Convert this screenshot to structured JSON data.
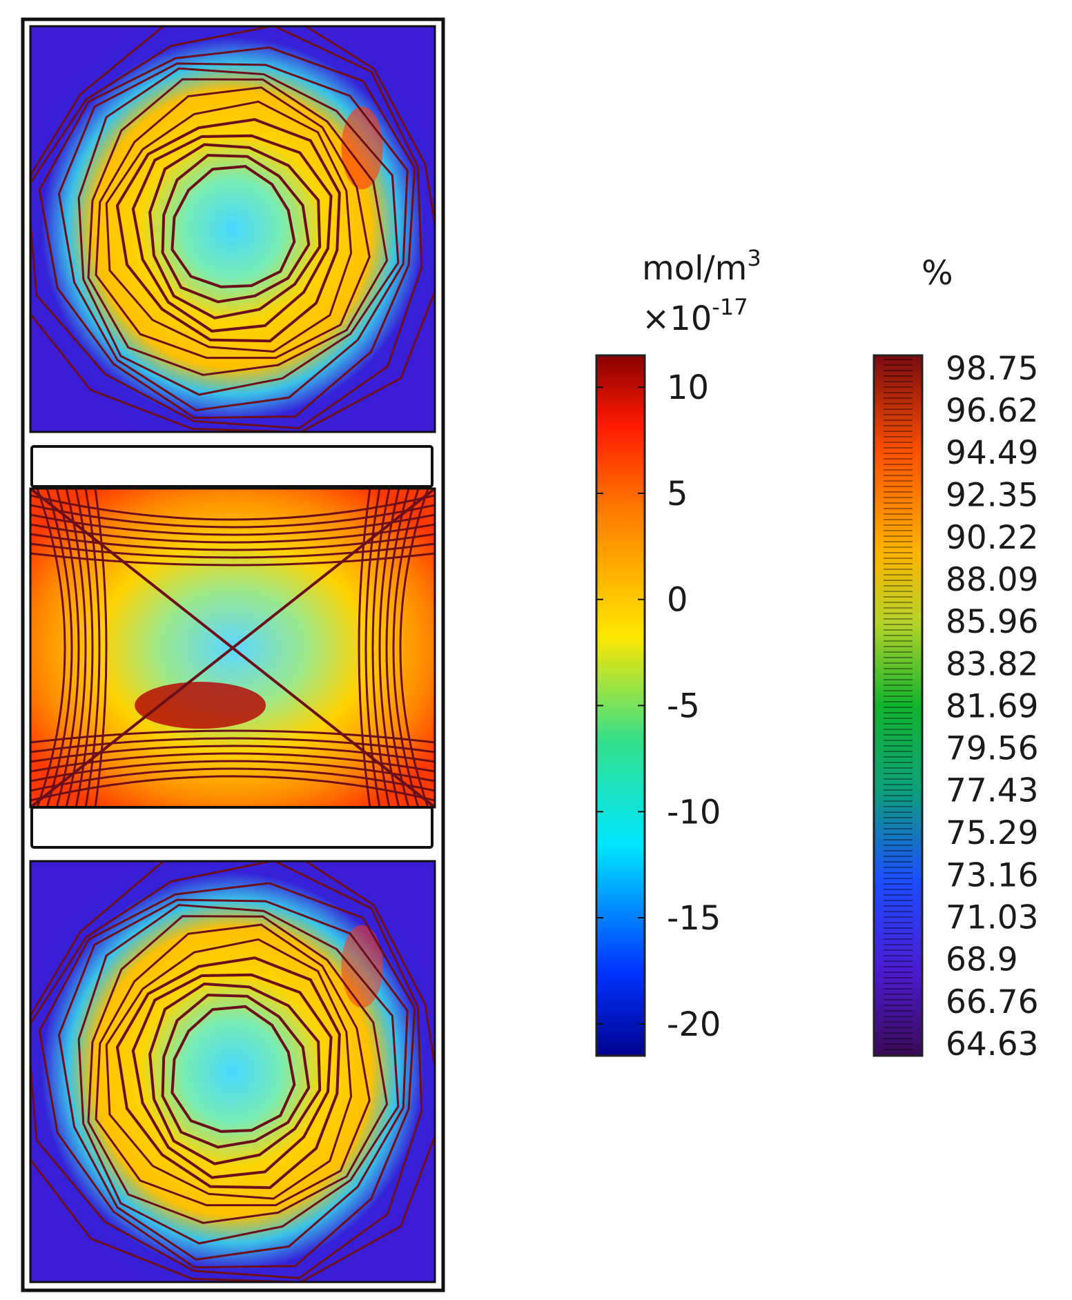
{
  "chart_data": {
    "type": "heatmap",
    "title": "",
    "panels": [
      {
        "name": "",
        "pattern": "rings",
        "hot_ring_intensity": 0.62
      },
      {
        "name": "",
        "pattern": "cross",
        "hot_ring_intensity": 0.8
      },
      {
        "name": "",
        "pattern": "rings",
        "hot_ring_intensity": 0.55
      }
    ],
    "colorbars": [
      {
        "name": "concentration",
        "unit_line1": "mol/m",
        "unit_sup": "3",
        "unit_line2": "×10",
        "unit_line2_sup": "-17",
        "ticks": [
          "10",
          "5",
          "0",
          "-5",
          "-10",
          "-15",
          "-20"
        ],
        "tick_values": [
          10,
          5,
          0,
          -5,
          -10,
          -15,
          -20
        ],
        "range": [
          -21.5,
          11.5
        ],
        "colormap": "rainbow"
      },
      {
        "name": "relative-humidity",
        "unit_line1": "%",
        "ticks": [
          "98.75",
          "96.62",
          "94.49",
          "92.35",
          "90.22",
          "88.09",
          "85.96",
          "83.82",
          "81.69",
          "79.56",
          "77.43",
          "75.29",
          "73.16",
          "71.03",
          "68.9",
          "66.76",
          "64.63"
        ],
        "tick_values": [
          98.75,
          96.62,
          94.49,
          92.35,
          90.22,
          88.09,
          85.96,
          83.82,
          81.69,
          79.56,
          77.43,
          75.29,
          73.16,
          71.03,
          68.9,
          66.76,
          64.63
        ],
        "range": [
          64.63,
          98.75
        ],
        "colormap": "spectral-dark"
      }
    ],
    "colors": {
      "contour_line": "#6b0f1a",
      "outline": "#111111",
      "background": "#ffffff"
    }
  }
}
